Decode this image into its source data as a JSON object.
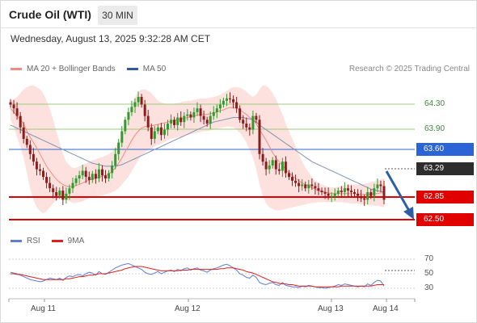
{
  "header": {
    "title": "Crude Oil (WTI)",
    "interval": "30 MIN",
    "datetime": "Wednesday, August 13, 2025 9:32:28 AM CET"
  },
  "legend": {
    "ma20_label": "MA 20 + Bollinger Bands",
    "ma20_color": "#f28b82",
    "ma50_label": "MA 50",
    "ma50_color": "#2f5b9a",
    "copyright": "Research © 2025 Trading Central"
  },
  "rsi_legend": {
    "rsi_label": "RSI",
    "rsi_color": "#5b7fd4",
    "ma_label": "9MA",
    "ma_color": "#e02020"
  },
  "chart_data": {
    "type": "candlestick",
    "x_dates": [
      "Aug 11",
      "Aug 12",
      "Aug 13",
      "Aug 14"
    ],
    "price_range": [
      62.4,
      64.52
    ],
    "resistance_levels": [
      64.3,
      63.9
    ],
    "ma50_value": 63.6,
    "last_price": 63.29,
    "support_levels": [
      62.85,
      62.5
    ],
    "forecast_target": 62.5,
    "closes": [
      64.25,
      64.2,
      64.1,
      63.95,
      63.8,
      63.72,
      63.6,
      63.5,
      63.4,
      63.38,
      63.3,
      63.22,
      63.15,
      63.1,
      63.05,
      63.12,
      63.0,
      63.08,
      63.15,
      63.22,
      63.28,
      63.32,
      63.38,
      63.3,
      63.26,
      63.34,
      63.28,
      63.4,
      63.32,
      63.28,
      63.35,
      63.45,
      63.6,
      63.75,
      63.9,
      64.05,
      64.15,
      64.22,
      64.28,
      64.35,
      64.25,
      64.1,
      63.95,
      63.8,
      63.9,
      63.95,
      63.85,
      63.92,
      64.0,
      64.05,
      63.98,
      64.08,
      64.02,
      64.1,
      64.12,
      64.08,
      64.15,
      64.2,
      64.1,
      64.05,
      64.0,
      64.1,
      64.15,
      64.2,
      64.25,
      64.3,
      64.33,
      64.32,
      64.28,
      64.2,
      64.05,
      64.0,
      63.95,
      63.92,
      64.1,
      64.05,
      63.6,
      63.5,
      63.4,
      63.45,
      63.52,
      63.4,
      63.38,
      63.5,
      63.35,
      63.3,
      63.25,
      63.22,
      63.18,
      63.2,
      63.15,
      63.2,
      63.18,
      63.15,
      63.12,
      63.1,
      63.08,
      63.05,
      63.05,
      63.08,
      63.12,
      63.1,
      63.15,
      63.12,
      63.1,
      63.08,
      63.05,
      63.02,
      63.0,
      63.1,
      63.05,
      63.15,
      63.2,
      63.18,
      63.0
    ],
    "ma20": [
      64.2,
      64.15,
      64.1,
      64.05,
      64.0,
      63.9,
      63.82,
      63.75,
      63.68,
      63.6,
      63.52,
      63.44,
      63.38,
      63.32,
      63.27,
      63.23,
      63.2,
      63.18,
      63.17,
      63.17,
      63.19,
      63.2,
      63.22,
      63.24,
      63.26,
      63.27,
      63.28,
      63.3,
      63.31,
      63.32,
      63.34,
      63.37,
      63.42,
      63.48,
      63.55,
      63.63,
      63.7,
      63.78,
      63.85,
      63.9,
      63.94,
      63.96,
      63.97,
      63.97,
      63.98,
      63.99,
      64.0,
      64.01,
      64.02,
      64.03,
      64.04,
      64.05,
      64.06,
      64.07,
      64.08,
      64.09,
      64.1,
      64.11,
      64.12,
      64.12,
      64.12,
      64.13,
      64.14,
      64.15,
      64.17,
      64.18,
      64.2,
      64.21,
      64.21,
      64.2,
      64.18,
      64.15,
      64.12,
      64.08,
      64.05,
      64.0,
      63.92,
      63.85,
      63.78,
      63.7,
      63.62,
      63.55,
      63.5,
      63.45,
      63.4,
      63.35,
      63.32,
      63.28,
      63.25,
      63.22,
      63.2,
      63.18,
      63.16,
      63.14,
      63.12,
      63.11,
      63.1,
      63.09,
      63.08,
      63.08,
      63.08,
      63.08,
      63.08,
      63.08,
      63.08,
      63.08,
      63.07,
      63.07,
      63.07,
      63.07,
      63.07,
      63.08,
      63.08,
      63.09,
      63.09
    ],
    "bb_upper": [
      64.3,
      64.32,
      64.35,
      64.4,
      64.45,
      64.48,
      64.5,
      64.5,
      64.48,
      64.45,
      64.4,
      64.3,
      64.2,
      64.05,
      63.9,
      63.75,
      63.6,
      63.5,
      63.45,
      63.42,
      63.42,
      63.44,
      63.46,
      63.48,
      63.5,
      63.52,
      63.53,
      63.55,
      63.56,
      63.58,
      63.6,
      63.63,
      63.68,
      63.75,
      63.85,
      63.98,
      64.12,
      64.25,
      64.35,
      64.42,
      64.45,
      64.45,
      64.43,
      64.4,
      64.35,
      64.3,
      64.28,
      64.26,
      64.25,
      64.25,
      64.26,
      64.27,
      64.28,
      64.29,
      64.3,
      64.3,
      64.31,
      64.32,
      64.33,
      64.33,
      64.33,
      64.34,
      64.35,
      64.36,
      64.38,
      64.4,
      64.43,
      64.46,
      64.48,
      64.48,
      64.47,
      64.45,
      64.42,
      64.38,
      64.35,
      64.38,
      64.45,
      64.5,
      64.5,
      64.46,
      64.4,
      64.32,
      64.22,
      64.12,
      64.0,
      63.9,
      63.8,
      63.7,
      63.6,
      63.5,
      63.42,
      63.36,
      63.3,
      63.25,
      63.22,
      63.2,
      63.18,
      63.17,
      63.16,
      63.16,
      63.17,
      63.18,
      63.19,
      63.2,
      63.2,
      63.2,
      63.2,
      63.2,
      63.21,
      63.22,
      63.23,
      63.24,
      63.25,
      63.27,
      63.28
    ],
    "bb_lower": [
      64.05,
      63.95,
      63.82,
      63.7,
      63.55,
      63.35,
      63.15,
      63.0,
      62.9,
      62.85,
      62.82,
      62.85,
      62.9,
      62.95,
      63.0,
      63.02,
      63.02,
      63.0,
      62.98,
      62.96,
      62.96,
      62.97,
      62.98,
      63.0,
      63.02,
      63.03,
      63.04,
      63.05,
      63.06,
      63.07,
      63.08,
      63.1,
      63.12,
      63.15,
      63.2,
      63.25,
      63.3,
      63.38,
      63.45,
      63.52,
      63.58,
      63.62,
      63.65,
      63.67,
      63.7,
      63.72,
      63.74,
      63.76,
      63.78,
      63.8,
      63.81,
      63.82,
      63.83,
      63.84,
      63.85,
      63.86,
      63.87,
      63.88,
      63.89,
      63.9,
      63.9,
      63.91,
      63.92,
      63.93,
      63.94,
      63.95,
      63.96,
      63.96,
      63.95,
      63.92,
      63.88,
      63.82,
      63.75,
      63.65,
      63.55,
      63.4,
      63.2,
      63.05,
      62.95,
      62.9,
      62.88,
      62.86,
      62.86,
      62.87,
      62.88,
      62.89,
      62.9,
      62.91,
      62.92,
      62.93,
      62.94,
      62.95,
      62.96,
      62.96,
      62.97,
      62.97,
      62.97,
      62.97,
      62.97,
      62.97,
      62.97,
      62.97,
      62.96,
      62.96,
      62.95,
      62.95,
      62.95,
      62.94,
      62.94,
      62.93,
      62.93,
      62.92,
      62.92,
      62.91,
      62.9
    ],
    "ma50": [
      63.98,
      63.96,
      63.94,
      63.92,
      63.9,
      63.88,
      63.86,
      63.84,
      63.82,
      63.8,
      63.78,
      63.76,
      63.74,
      63.72,
      63.7,
      63.68,
      63.66,
      63.64,
      63.62,
      63.6,
      63.58,
      63.56,
      63.54,
      63.52,
      63.5,
      63.48,
      63.47,
      63.46,
      63.45,
      63.44,
      63.44,
      63.44,
      63.44,
      63.45,
      63.46,
      63.48,
      63.5,
      63.52,
      63.54,
      63.56,
      63.58,
      63.6,
      63.62,
      63.64,
      63.66,
      63.68,
      63.7,
      63.72,
      63.74,
      63.76,
      63.78,
      63.8,
      63.82,
      63.84,
      63.86,
      63.88,
      63.9,
      63.92,
      63.94,
      63.96,
      63.98,
      64.0,
      64.02,
      64.03,
      64.04,
      64.05,
      64.06,
      64.07,
      64.08,
      64.08,
      64.08,
      64.08,
      64.07,
      64.06,
      64.05,
      64.02,
      63.98,
      63.95,
      63.92,
      63.89,
      63.86,
      63.83,
      63.8,
      63.77,
      63.74,
      63.71,
      63.68,
      63.65,
      63.62,
      63.59,
      63.56,
      63.53,
      63.5,
      63.48,
      63.46,
      63.44,
      63.42,
      63.4,
      63.38,
      63.36,
      63.34,
      63.32,
      63.3,
      63.28,
      63.26,
      63.24,
      63.22,
      63.2,
      63.18,
      63.16,
      63.14,
      63.13,
      63.12,
      63.11,
      63.1
    ],
    "rsi": [
      52,
      51,
      50,
      48,
      46,
      44,
      42,
      41,
      40,
      39,
      40,
      42,
      44,
      43,
      42,
      44,
      41,
      45,
      47,
      46,
      48,
      49,
      47,
      50,
      52,
      51,
      48,
      53,
      50,
      49,
      52,
      55,
      58,
      60,
      62,
      63,
      64,
      62,
      60,
      58,
      56,
      52,
      50,
      49,
      51,
      53,
      50,
      52,
      54,
      55,
      53,
      56,
      54,
      57,
      58,
      55,
      57,
      58,
      55,
      54,
      52,
      55,
      57,
      58,
      60,
      62,
      63,
      61,
      58,
      55,
      50,
      48,
      45,
      44,
      48,
      45,
      38,
      36,
      35,
      37,
      38,
      35,
      34,
      38,
      34,
      33,
      32,
      32,
      31,
      33,
      32,
      34,
      33,
      32,
      31,
      31,
      30,
      31,
      32,
      33,
      35,
      34,
      36,
      35,
      34,
      33,
      32,
      33,
      32,
      36,
      34,
      38,
      41,
      40,
      33
    ],
    "rsi_ma": [
      50,
      50,
      49,
      49,
      48,
      47,
      46,
      45,
      44,
      43,
      42,
      42,
      42,
      42,
      42,
      42,
      42,
      43,
      43,
      44,
      45,
      46,
      46,
      47,
      48,
      48,
      49,
      50,
      50,
      50,
      51,
      52,
      53,
      54,
      55,
      57,
      58,
      59,
      60,
      60,
      60,
      59,
      58,
      57,
      56,
      55,
      54,
      54,
      54,
      54,
      54,
      54,
      55,
      55,
      55,
      56,
      56,
      56,
      56,
      56,
      56,
      56,
      56,
      56,
      57,
      57,
      58,
      58,
      58,
      57,
      56,
      55,
      53,
      52,
      51,
      49,
      47,
      45,
      43,
      41,
      39,
      38,
      37,
      36,
      36,
      35,
      35,
      34,
      33,
      33,
      33,
      33,
      33,
      32,
      32,
      32,
      32,
      32,
      32,
      32,
      32,
      33,
      33,
      33,
      33,
      33,
      33,
      33,
      33,
      33,
      33,
      34,
      35,
      35,
      35
    ],
    "rsi_ticks": [
      "70",
      "50",
      "30"
    ]
  },
  "levels": {
    "r1": "64.30",
    "r2": "63.90",
    "ma50": "63.60",
    "last": "63.29",
    "s1": "62.85",
    "s2": "62.50"
  }
}
